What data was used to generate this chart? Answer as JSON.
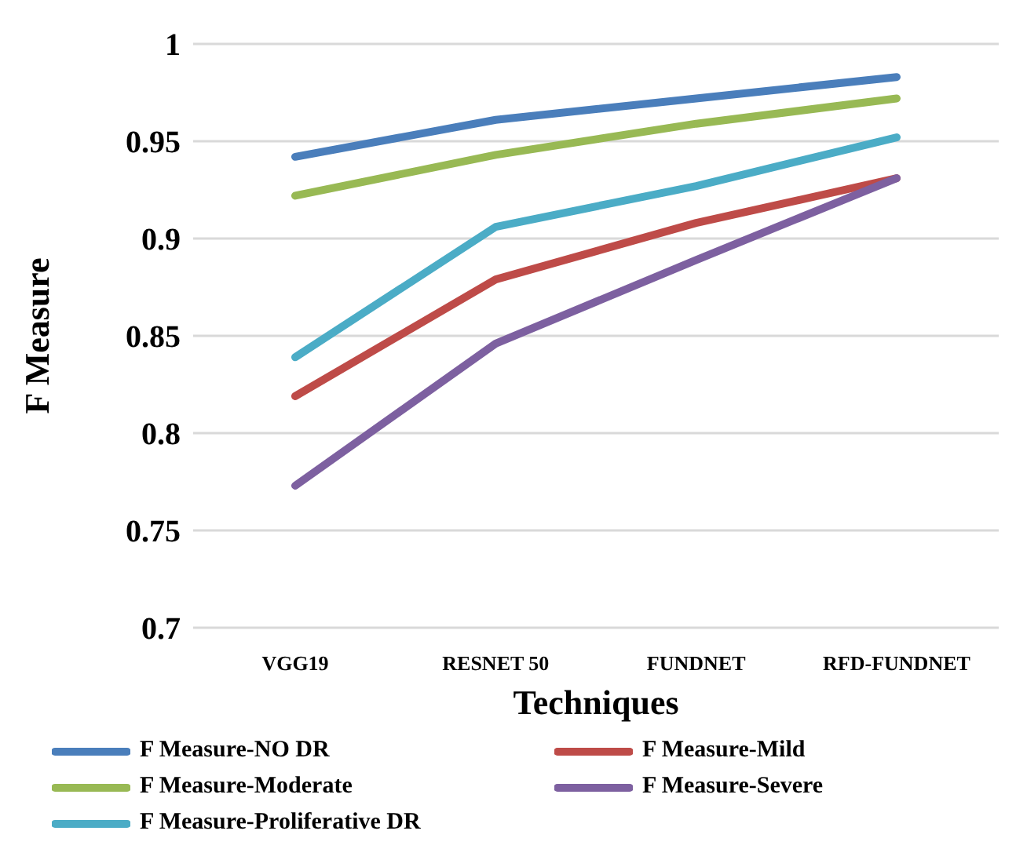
{
  "chart_data": {
    "type": "line",
    "xlabel": "Techniques",
    "ylabel": "F Measure",
    "categories": [
      "VGG19",
      "RESNET 50",
      "FUNDNET",
      "RFD-FUNDNET"
    ],
    "series": [
      {
        "name": "F Measure-NO DR",
        "color": "#4a7ebb",
        "values": [
          0.942,
          0.961,
          0.972,
          0.983
        ]
      },
      {
        "name": "F Measure-Mild",
        "color": "#be4b48",
        "values": [
          0.819,
          0.879,
          0.908,
          0.931
        ]
      },
      {
        "name": "F Measure-Moderate",
        "color": "#98b954",
        "values": [
          0.922,
          0.943,
          0.959,
          0.972
        ]
      },
      {
        "name": "F Measure-Severe",
        "color": "#7d60a0",
        "values": [
          0.773,
          0.846,
          0.889,
          0.931
        ]
      },
      {
        "name": "F Measure-Proliferative DR",
        "color": "#4bacc6",
        "values": [
          0.839,
          0.906,
          0.927,
          0.952
        ]
      }
    ],
    "ylim": [
      0.7,
      1
    ],
    "yticks": [
      0.7,
      0.75,
      0.8,
      0.85,
      0.9,
      0.95,
      1
    ],
    "grid": "y",
    "legend": "bottom",
    "marker": "none",
    "line_style": "solid"
  }
}
